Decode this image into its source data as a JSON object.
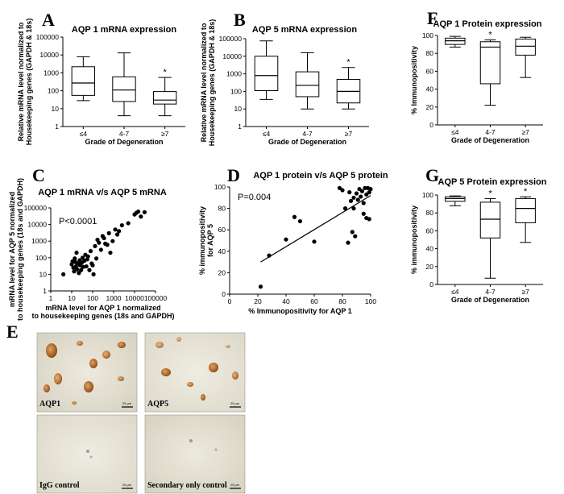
{
  "figure": {
    "panel_E_label": "E",
    "micrograph_labels": [
      "AQP1",
      "AQP5",
      "IgG control",
      "Secondary only control"
    ],
    "scale_bar_text": "25 µm"
  },
  "chart_data": [
    {
      "id": "A",
      "label": "A",
      "type": "box",
      "log_y": true,
      "title": "AQP 1 mRNA expression",
      "ylabel": [
        "Relative mRNA level normalized to",
        "Housekeeping genes (GAPDH & 18s)"
      ],
      "xlabel": "Grade of Degeneration",
      "categories": [
        "≤4",
        "4-7",
        "≥7"
      ],
      "ylim": [
        1,
        100000
      ],
      "yticks": [
        1,
        10,
        100,
        1000,
        10000,
        100000
      ],
      "boxes": [
        {
          "min": 28,
          "q1": 55,
          "median": 270,
          "q3": 2200,
          "max": 8000
        },
        {
          "min": 4,
          "q1": 25,
          "median": 110,
          "q3": 600,
          "max": 13000
        },
        {
          "min": 4,
          "q1": 18,
          "median": 30,
          "q3": 90,
          "max": 550
        }
      ],
      "markers": [
        "",
        "",
        "*"
      ]
    },
    {
      "id": "B",
      "label": "B",
      "type": "box",
      "log_y": true,
      "title": "AQP 5 mRNA expression",
      "ylabel": [
        "Relative mRNA level normalized to",
        "Housekeeping genes (GAPDH & 18s)"
      ],
      "xlabel": "Grade of Degeneration",
      "categories": [
        "≤4",
        "4-7",
        "≥7"
      ],
      "ylim": [
        1,
        100000
      ],
      "yticks": [
        1,
        10,
        100,
        1000,
        10000,
        100000
      ],
      "boxes": [
        {
          "min": 35,
          "q1": 110,
          "median": 800,
          "q3": 10000,
          "max": 75000
        },
        {
          "min": 10,
          "q1": 50,
          "median": 220,
          "q3": 1300,
          "max": 16000
        },
        {
          "min": 10,
          "q1": 22,
          "median": 100,
          "q3": 480,
          "max": 2300
        }
      ],
      "markers": [
        "",
        "",
        "*"
      ]
    },
    {
      "id": "F",
      "label": "F",
      "type": "box",
      "log_y": false,
      "title": "AQP 1 Protein expression",
      "ylabel": [
        "% Immunopositivity"
      ],
      "xlabel": "Grade of Degeneration",
      "categories": [
        "≤4",
        "4-7",
        "≥7"
      ],
      "ylim": [
        0,
        100
      ],
      "yticks": [
        0,
        20,
        40,
        60,
        80,
        100
      ],
      "boxes": [
        {
          "min": 87,
          "q1": 90,
          "median": 94,
          "q3": 97,
          "max": 99
        },
        {
          "min": 22,
          "q1": 46,
          "median": 87,
          "q3": 93,
          "max": 95
        },
        {
          "min": 53,
          "q1": 78,
          "median": 88,
          "q3": 96,
          "max": 98
        }
      ],
      "markers": [
        "",
        "*",
        ""
      ]
    },
    {
      "id": "C",
      "label": "C",
      "type": "scatter",
      "log_x": true,
      "log_y": true,
      "title": "AQP 1 mRNA v/s AQP 5 mRNA",
      "annotation": "P<0.0001",
      "xlabel": [
        "mRNA level for AQP 1 normalized",
        "to housekeeping genes (18s and GAPDH)"
      ],
      "ylabel": [
        "mRNA level for AQP 5 normalized",
        "to housekeeping genes (18s and GAPDH)"
      ],
      "xlim": [
        1,
        100000
      ],
      "ylim": [
        1,
        100000
      ],
      "xticks": [
        1,
        10,
        100,
        1000,
        10000,
        100000
      ],
      "yticks": [
        1,
        10,
        100,
        1000,
        10000,
        100000
      ],
      "points": [
        [
          4,
          10
        ],
        [
          10,
          40
        ],
        [
          11,
          60
        ],
        [
          12,
          25
        ],
        [
          13,
          15
        ],
        [
          14,
          90
        ],
        [
          15,
          55
        ],
        [
          16,
          30
        ],
        [
          17,
          200
        ],
        [
          18,
          20
        ],
        [
          20,
          45
        ],
        [
          22,
          12
        ],
        [
          24,
          70
        ],
        [
          25,
          35
        ],
        [
          28,
          18
        ],
        [
          30,
          50
        ],
        [
          33,
          100
        ],
        [
          35,
          28
        ],
        [
          40,
          65
        ],
        [
          45,
          150
        ],
        [
          50,
          30
        ],
        [
          55,
          80
        ],
        [
          60,
          120
        ],
        [
          70,
          18
        ],
        [
          80,
          250
        ],
        [
          90,
          45
        ],
        [
          100,
          35
        ],
        [
          110,
          10
        ],
        [
          130,
          500
        ],
        [
          150,
          90
        ],
        [
          170,
          1200
        ],
        [
          200,
          800
        ],
        [
          250,
          300
        ],
        [
          300,
          2000
        ],
        [
          350,
          1500
        ],
        [
          400,
          700
        ],
        [
          500,
          600
        ],
        [
          600,
          3000
        ],
        [
          700,
          200
        ],
        [
          900,
          1000
        ],
        [
          1200,
          5000
        ],
        [
          1500,
          2500
        ],
        [
          1800,
          4000
        ],
        [
          2500,
          9000
        ],
        [
          5000,
          12000
        ],
        [
          10000,
          40000
        ],
        [
          12000,
          50000
        ],
        [
          15000,
          60000
        ],
        [
          20000,
          30000
        ],
        [
          30000,
          55000
        ]
      ],
      "fit": false
    },
    {
      "id": "D",
      "label": "D",
      "type": "scatter",
      "log_x": false,
      "log_y": false,
      "title": "AQP 1 protein v/s AQP 5 protein",
      "annotation": "P=0.004",
      "xlabel": [
        "% Immunopositivity for AQP 1"
      ],
      "ylabel": [
        "% immunopositivity",
        "for AQP 5"
      ],
      "xlim": [
        0,
        100
      ],
      "ylim": [
        0,
        100
      ],
      "xticks": [
        0,
        20,
        40,
        60,
        80,
        100
      ],
      "yticks": [
        0,
        20,
        40,
        60,
        80,
        100
      ],
      "points": [
        [
          22,
          7
        ],
        [
          28,
          36
        ],
        [
          40,
          51
        ],
        [
          46,
          72
        ],
        [
          50,
          68
        ],
        [
          60,
          49
        ],
        [
          78,
          99
        ],
        [
          80,
          97
        ],
        [
          82,
          80
        ],
        [
          84,
          48
        ],
        [
          85,
          95
        ],
        [
          86,
          87
        ],
        [
          87,
          58
        ],
        [
          88,
          90
        ],
        [
          88,
          80
        ],
        [
          89,
          54
        ],
        [
          90,
          94
        ],
        [
          91,
          88
        ],
        [
          92,
          98
        ],
        [
          93,
          91
        ],
        [
          94,
          96
        ],
        [
          95,
          85
        ],
        [
          95,
          75
        ],
        [
          96,
          99
        ],
        [
          97,
          93
        ],
        [
          97,
          71
        ],
        [
          98,
          99
        ],
        [
          99,
          95
        ],
        [
          99,
          70
        ],
        [
          100,
          98
        ]
      ],
      "fit": true,
      "fit_line": {
        "x0": 22,
        "y0": 30,
        "x1": 100,
        "y1": 92
      }
    },
    {
      "id": "G",
      "label": "G",
      "type": "box",
      "log_y": false,
      "title": "AQP 5 Protein expression",
      "ylabel": [
        "% immunopositivity"
      ],
      "xlabel": "Grade of Degeneration",
      "categories": [
        "≤4",
        "4-7",
        "≥7"
      ],
      "ylim": [
        0,
        100
      ],
      "yticks": [
        0,
        20,
        40,
        60,
        80,
        100
      ],
      "boxes": [
        {
          "min": 88,
          "q1": 93,
          "median": 96,
          "q3": 98,
          "max": 99
        },
        {
          "min": 7,
          "q1": 52,
          "median": 73,
          "q3": 92,
          "max": 96
        },
        {
          "min": 47,
          "q1": 69,
          "median": 85,
          "q3": 96,
          "max": 98
        }
      ],
      "markers": [
        "",
        "*",
        "*"
      ]
    }
  ]
}
